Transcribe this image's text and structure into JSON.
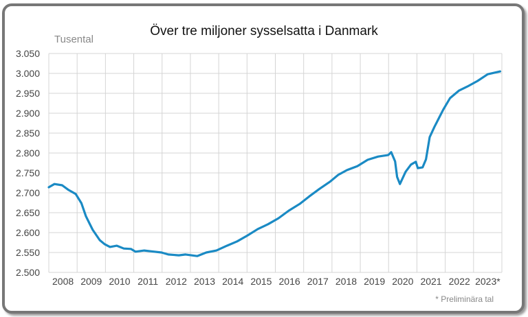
{
  "chart_data": {
    "type": "line",
    "title": "Över tre miljoner sysselsatta i Danmark",
    "ylabel": "Tusental",
    "footnote": "* Preliminära tal",
    "ylim": [
      2500,
      3050
    ],
    "xlim": [
      2008,
      2024
    ],
    "grid": true,
    "line_color": "#1a8ac4",
    "yticks": [
      "2.500",
      "2.550",
      "2.600",
      "2.650",
      "2.700",
      "2.750",
      "2.800",
      "2.850",
      "2.900",
      "2.950",
      "3.000",
      "3.050"
    ],
    "xticks": [
      "2008",
      "2009",
      "2010",
      "2011",
      "2012",
      "2013",
      "2014",
      "2015",
      "2016",
      "2017",
      "2018",
      "2019",
      "2020",
      "2021",
      "2022",
      "2023*"
    ],
    "series": [
      {
        "x": [
          2008.0,
          2008.2,
          2008.47,
          2008.7,
          2008.95,
          2009.15,
          2009.31,
          2009.55,
          2009.8,
          2009.97,
          2010.16,
          2010.4,
          2010.65,
          2010.9,
          2011.06,
          2011.37,
          2011.62,
          2011.98,
          2012.22,
          2012.59,
          2012.83,
          2013.24,
          2013.56,
          2013.92,
          2014.29,
          2014.65,
          2015.02,
          2015.38,
          2015.74,
          2016.11,
          2016.47,
          2016.86,
          2017.2,
          2017.56,
          2017.93,
          2018.22,
          2018.53,
          2018.9,
          2019.26,
          2019.63,
          2019.99,
          2020.09,
          2020.23,
          2020.3,
          2020.4,
          2020.6,
          2020.79,
          2020.96,
          2021.03,
          2021.2,
          2021.32,
          2021.45,
          2021.62,
          2021.93,
          2022.17,
          2022.49,
          2022.78,
          2023.14,
          2023.5,
          2023.94
        ],
        "y": [
          2714,
          2722,
          2719,
          2707,
          2697,
          2674,
          2641,
          2607,
          2581,
          2571,
          2564,
          2567,
          2560,
          2559,
          2552,
          2555,
          2553,
          2550,
          2545,
          2543,
          2545,
          2541,
          2550,
          2555,
          2567,
          2578,
          2593,
          2609,
          2621,
          2636,
          2655,
          2672,
          2691,
          2710,
          2728,
          2745,
          2757,
          2767,
          2783,
          2791,
          2795,
          2802,
          2779,
          2740,
          2722,
          2753,
          2771,
          2778,
          2762,
          2764,
          2784,
          2840,
          2866,
          2909,
          2938,
          2957,
          2967,
          2981,
          2998,
          3005
        ]
      }
    ]
  }
}
